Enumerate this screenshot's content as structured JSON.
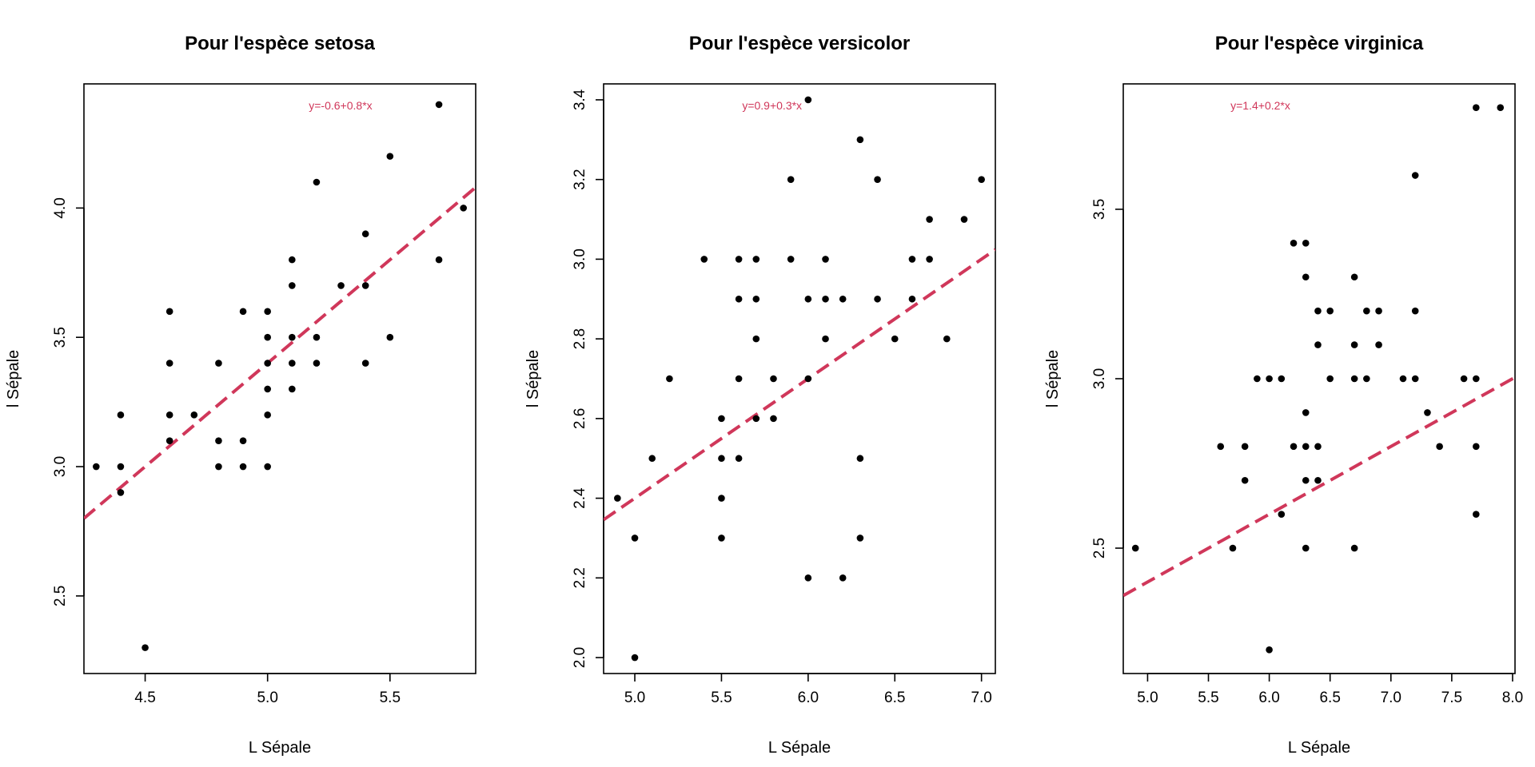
{
  "chart_data": [
    {
      "type": "scatter",
      "title": "Pour l'espèce setosa",
      "xlabel": "L Sépale",
      "ylabel": "l Sépale",
      "xlim": [
        4.25,
        5.85
      ],
      "ylim": [
        2.2,
        4.48
      ],
      "xticks": [
        "4.5",
        "5.0",
        "5.5"
      ],
      "yticks": [
        "2.5",
        "3.0",
        "3.5",
        "4.0"
      ],
      "equation": "y=-0.6+0.8*x",
      "fit": {
        "intercept": -0.6,
        "slope": 0.8
      },
      "points": [
        [
          4.3,
          3.0
        ],
        [
          4.4,
          3.2
        ],
        [
          4.4,
          3.0
        ],
        [
          4.4,
          2.9
        ],
        [
          4.5,
          2.3
        ],
        [
          4.6,
          3.6
        ],
        [
          4.6,
          3.4
        ],
        [
          4.6,
          3.2
        ],
        [
          4.6,
          3.1
        ],
        [
          4.7,
          3.2
        ],
        [
          4.8,
          3.4
        ],
        [
          4.8,
          3.1
        ],
        [
          4.8,
          3.0
        ],
        [
          4.9,
          3.6
        ],
        [
          4.9,
          3.1
        ],
        [
          4.9,
          3.0
        ],
        [
          5.0,
          3.6
        ],
        [
          5.0,
          3.5
        ],
        [
          5.0,
          3.4
        ],
        [
          5.0,
          3.3
        ],
        [
          5.0,
          3.2
        ],
        [
          5.0,
          3.0
        ],
        [
          5.1,
          3.8
        ],
        [
          5.1,
          3.7
        ],
        [
          5.1,
          3.5
        ],
        [
          5.1,
          3.4
        ],
        [
          5.1,
          3.3
        ],
        [
          5.2,
          4.1
        ],
        [
          5.2,
          3.5
        ],
        [
          5.2,
          3.4
        ],
        [
          5.3,
          3.7
        ],
        [
          5.4,
          3.9
        ],
        [
          5.4,
          3.7
        ],
        [
          5.4,
          3.4
        ],
        [
          5.5,
          4.2
        ],
        [
          5.5,
          3.5
        ],
        [
          5.7,
          4.4
        ],
        [
          5.7,
          3.8
        ],
        [
          5.8,
          4.0
        ]
      ],
      "grid": false,
      "legend": "none"
    },
    {
      "type": "scatter",
      "title": "Pour l'espèce versicolor",
      "xlabel": "L Sépale",
      "ylabel": "l Sépale",
      "xlim": [
        4.82,
        7.08
      ],
      "ylim": [
        1.96,
        3.44
      ],
      "xticks": [
        "5.0",
        "5.5",
        "6.0",
        "6.5",
        "7.0"
      ],
      "yticks": [
        "2.0",
        "2.2",
        "2.4",
        "2.6",
        "2.8",
        "3.0",
        "3.2",
        "3.4"
      ],
      "equation": "y=0.9+0.3*x",
      "fit": {
        "intercept": 0.9,
        "slope": 0.3
      },
      "points": [
        [
          4.9,
          2.4
        ],
        [
          5.0,
          2.3
        ],
        [
          5.0,
          2.0
        ],
        [
          5.1,
          2.5
        ],
        [
          5.2,
          2.7
        ],
        [
          5.4,
          3.0
        ],
        [
          5.5,
          2.6
        ],
        [
          5.5,
          2.5
        ],
        [
          5.5,
          2.4
        ],
        [
          5.5,
          2.3
        ],
        [
          5.6,
          3.0
        ],
        [
          5.6,
          2.9
        ],
        [
          5.6,
          2.7
        ],
        [
          5.6,
          2.5
        ],
        [
          5.7,
          3.0
        ],
        [
          5.7,
          2.9
        ],
        [
          5.7,
          2.8
        ],
        [
          5.7,
          2.6
        ],
        [
          5.8,
          2.7
        ],
        [
          5.8,
          2.6
        ],
        [
          5.9,
          3.2
        ],
        [
          5.9,
          3.0
        ],
        [
          6.0,
          3.4
        ],
        [
          6.0,
          2.9
        ],
        [
          6.0,
          2.7
        ],
        [
          6.0,
          2.2
        ],
        [
          6.1,
          3.0
        ],
        [
          6.1,
          2.9
        ],
        [
          6.1,
          2.8
        ],
        [
          6.2,
          2.9
        ],
        [
          6.2,
          2.2
        ],
        [
          6.3,
          3.3
        ],
        [
          6.3,
          2.5
        ],
        [
          6.3,
          2.3
        ],
        [
          6.4,
          3.2
        ],
        [
          6.4,
          2.9
        ],
        [
          6.5,
          2.8
        ],
        [
          6.6,
          3.0
        ],
        [
          6.6,
          2.9
        ],
        [
          6.7,
          3.1
        ],
        [
          6.7,
          3.0
        ],
        [
          6.8,
          2.8
        ],
        [
          6.9,
          3.1
        ],
        [
          7.0,
          3.2
        ]
      ],
      "grid": false,
      "legend": "none"
    },
    {
      "type": "scatter",
      "title": "Pour l'espèce virginica",
      "xlabel": "L Sépale",
      "ylabel": "l Sépale",
      "xlim": [
        4.8,
        8.02
      ],
      "ylim": [
        2.13,
        3.87
      ],
      "xticks": [
        "5.0",
        "5.5",
        "6.0",
        "6.5",
        "7.0",
        "7.5",
        "8.0"
      ],
      "yticks": [
        "2.5",
        "3.0",
        "3.5"
      ],
      "equation": "y=1.4+0.2*x",
      "fit": {
        "intercept": 1.4,
        "slope": 0.2
      },
      "points": [
        [
          4.9,
          2.5
        ],
        [
          5.6,
          2.8
        ],
        [
          5.7,
          2.5
        ],
        [
          5.8,
          2.8
        ],
        [
          5.8,
          2.7
        ],
        [
          5.9,
          3.0
        ],
        [
          6.0,
          3.0
        ],
        [
          6.0,
          2.2
        ],
        [
          6.1,
          3.0
        ],
        [
          6.1,
          2.6
        ],
        [
          6.2,
          3.4
        ],
        [
          6.2,
          2.8
        ],
        [
          6.3,
          3.4
        ],
        [
          6.3,
          3.3
        ],
        [
          6.3,
          2.9
        ],
        [
          6.3,
          2.8
        ],
        [
          6.3,
          2.7
        ],
        [
          6.3,
          2.5
        ],
        [
          6.4,
          3.2
        ],
        [
          6.4,
          3.1
        ],
        [
          6.4,
          2.8
        ],
        [
          6.4,
          2.7
        ],
        [
          6.5,
          3.2
        ],
        [
          6.5,
          3.0
        ],
        [
          6.7,
          3.3
        ],
        [
          6.7,
          3.1
        ],
        [
          6.7,
          3.0
        ],
        [
          6.7,
          2.5
        ],
        [
          6.8,
          3.2
        ],
        [
          6.8,
          3.0
        ],
        [
          6.9,
          3.2
        ],
        [
          6.9,
          3.1
        ],
        [
          7.1,
          3.0
        ],
        [
          7.2,
          3.6
        ],
        [
          7.2,
          3.2
        ],
        [
          7.2,
          3.0
        ],
        [
          7.3,
          2.9
        ],
        [
          7.4,
          2.8
        ],
        [
          7.6,
          3.0
        ],
        [
          7.7,
          3.8
        ],
        [
          7.7,
          3.0
        ],
        [
          7.7,
          2.8
        ],
        [
          7.7,
          2.6
        ],
        [
          7.9,
          3.8
        ]
      ],
      "grid": false,
      "legend": "none"
    }
  ],
  "colors": {
    "points": "#000000",
    "fit_line": "#d0375a",
    "equation": "#d0375a",
    "axes": "#000000"
  }
}
